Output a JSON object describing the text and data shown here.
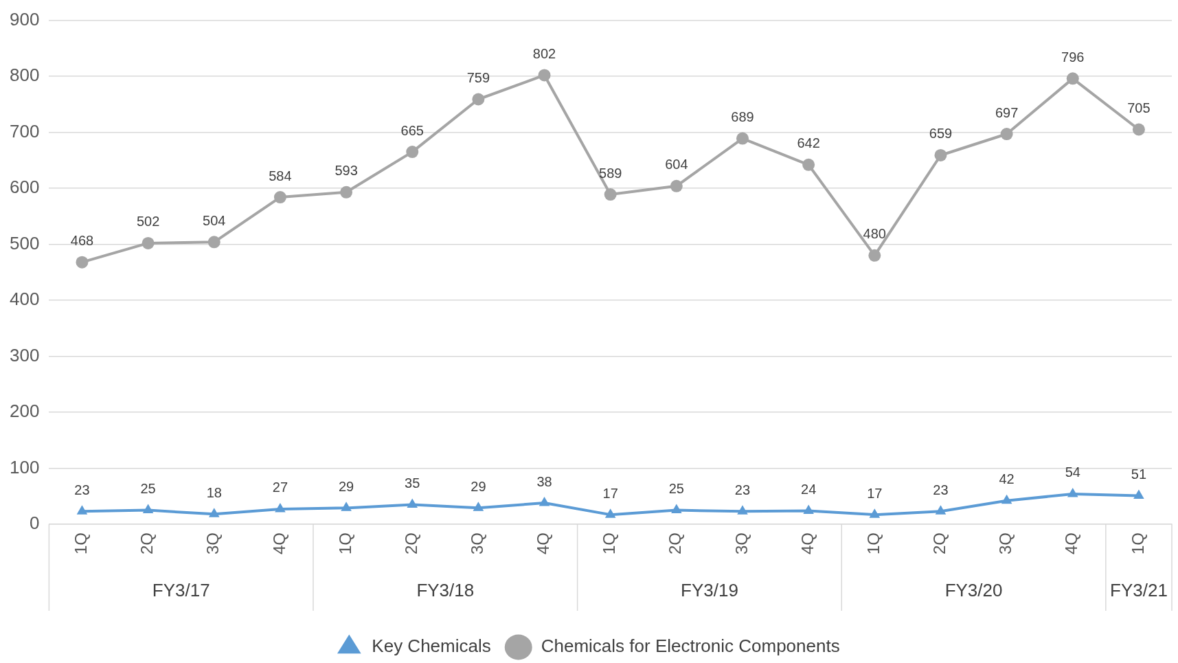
{
  "chart_data": {
    "type": "line",
    "categories": [
      "1Q",
      "2Q",
      "3Q",
      "4Q",
      "1Q",
      "2Q",
      "3Q",
      "4Q",
      "1Q",
      "2Q",
      "3Q",
      "4Q",
      "1Q",
      "2Q",
      "3Q",
      "4Q",
      "1Q"
    ],
    "series": [
      {
        "name": "Key Chemicals",
        "color": "#5b9bd5",
        "marker": "triangle",
        "values": [
          23,
          25,
          18,
          27,
          29,
          35,
          29,
          38,
          17,
          25,
          23,
          24,
          17,
          23,
          42,
          54,
          51
        ]
      },
      {
        "name": "Chemicals for Electronic Components",
        "color": "#a5a5a5",
        "marker": "circle",
        "values": [
          468,
          502,
          504,
          584,
          593,
          665,
          759,
          802,
          589,
          604,
          689,
          642,
          480,
          659,
          697,
          796,
          705
        ]
      }
    ],
    "annotations": [
      "FY3/17",
      "FY3/18",
      "FY3/19",
      "FY3/20",
      "FY3/21"
    ],
    "ylim": [
      0,
      900
    ],
    "yticks": [
      0,
      100,
      200,
      300,
      400,
      500,
      600,
      700,
      800,
      900
    ],
    "grid": "y",
    "legend": "bottom",
    "data_labels": true,
    "line_style": "solid"
  }
}
